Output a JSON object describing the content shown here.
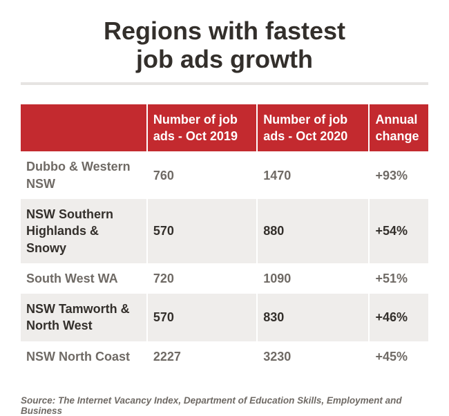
{
  "title_line1": "Regions with fastest",
  "title_line2": "job ads growth",
  "table": {
    "headers": [
      "",
      "Number of job ads - Oct 2019",
      "Number of job ads - Oct 2020",
      "Annual change"
    ],
    "header_bg": "#c32a2f",
    "header_fg": "#ffffff",
    "row_odd_bg": "#ffffff",
    "row_even_bg": "#efedeb",
    "rows": [
      {
        "region": "Dubbo & Western NSW",
        "v2019": "760",
        "v2020": "1470",
        "change": "+93%"
      },
      {
        "region": "NSW Southern Highlands & Snowy",
        "v2019": "570",
        "v2020": "880",
        "change": "+54%"
      },
      {
        "region": "South West WA",
        "v2019": "720",
        "v2020": "1090",
        "change": "+51%"
      },
      {
        "region": "NSW Tamworth & North West",
        "v2019": "570",
        "v2020": "830",
        "change": "+46%"
      },
      {
        "region": "NSW North Coast",
        "v2019": "2227",
        "v2020": "3230",
        "change": "+45%"
      }
    ]
  },
  "source": "Source: The Internet Vacancy Index, Department of Education Skills, Employment and Business",
  "style": {
    "background": "#ffffff",
    "title_color": "#332f2b",
    "title_fontsize": 36,
    "title_weight": 700,
    "rule_color": "#e6e4e2",
    "cell_fontsize": 18,
    "source_fontsize": 13.5,
    "source_color": "#6f6a65",
    "col_widths_pct": [
      31,
      27,
      27.5,
      14.5
    ]
  }
}
